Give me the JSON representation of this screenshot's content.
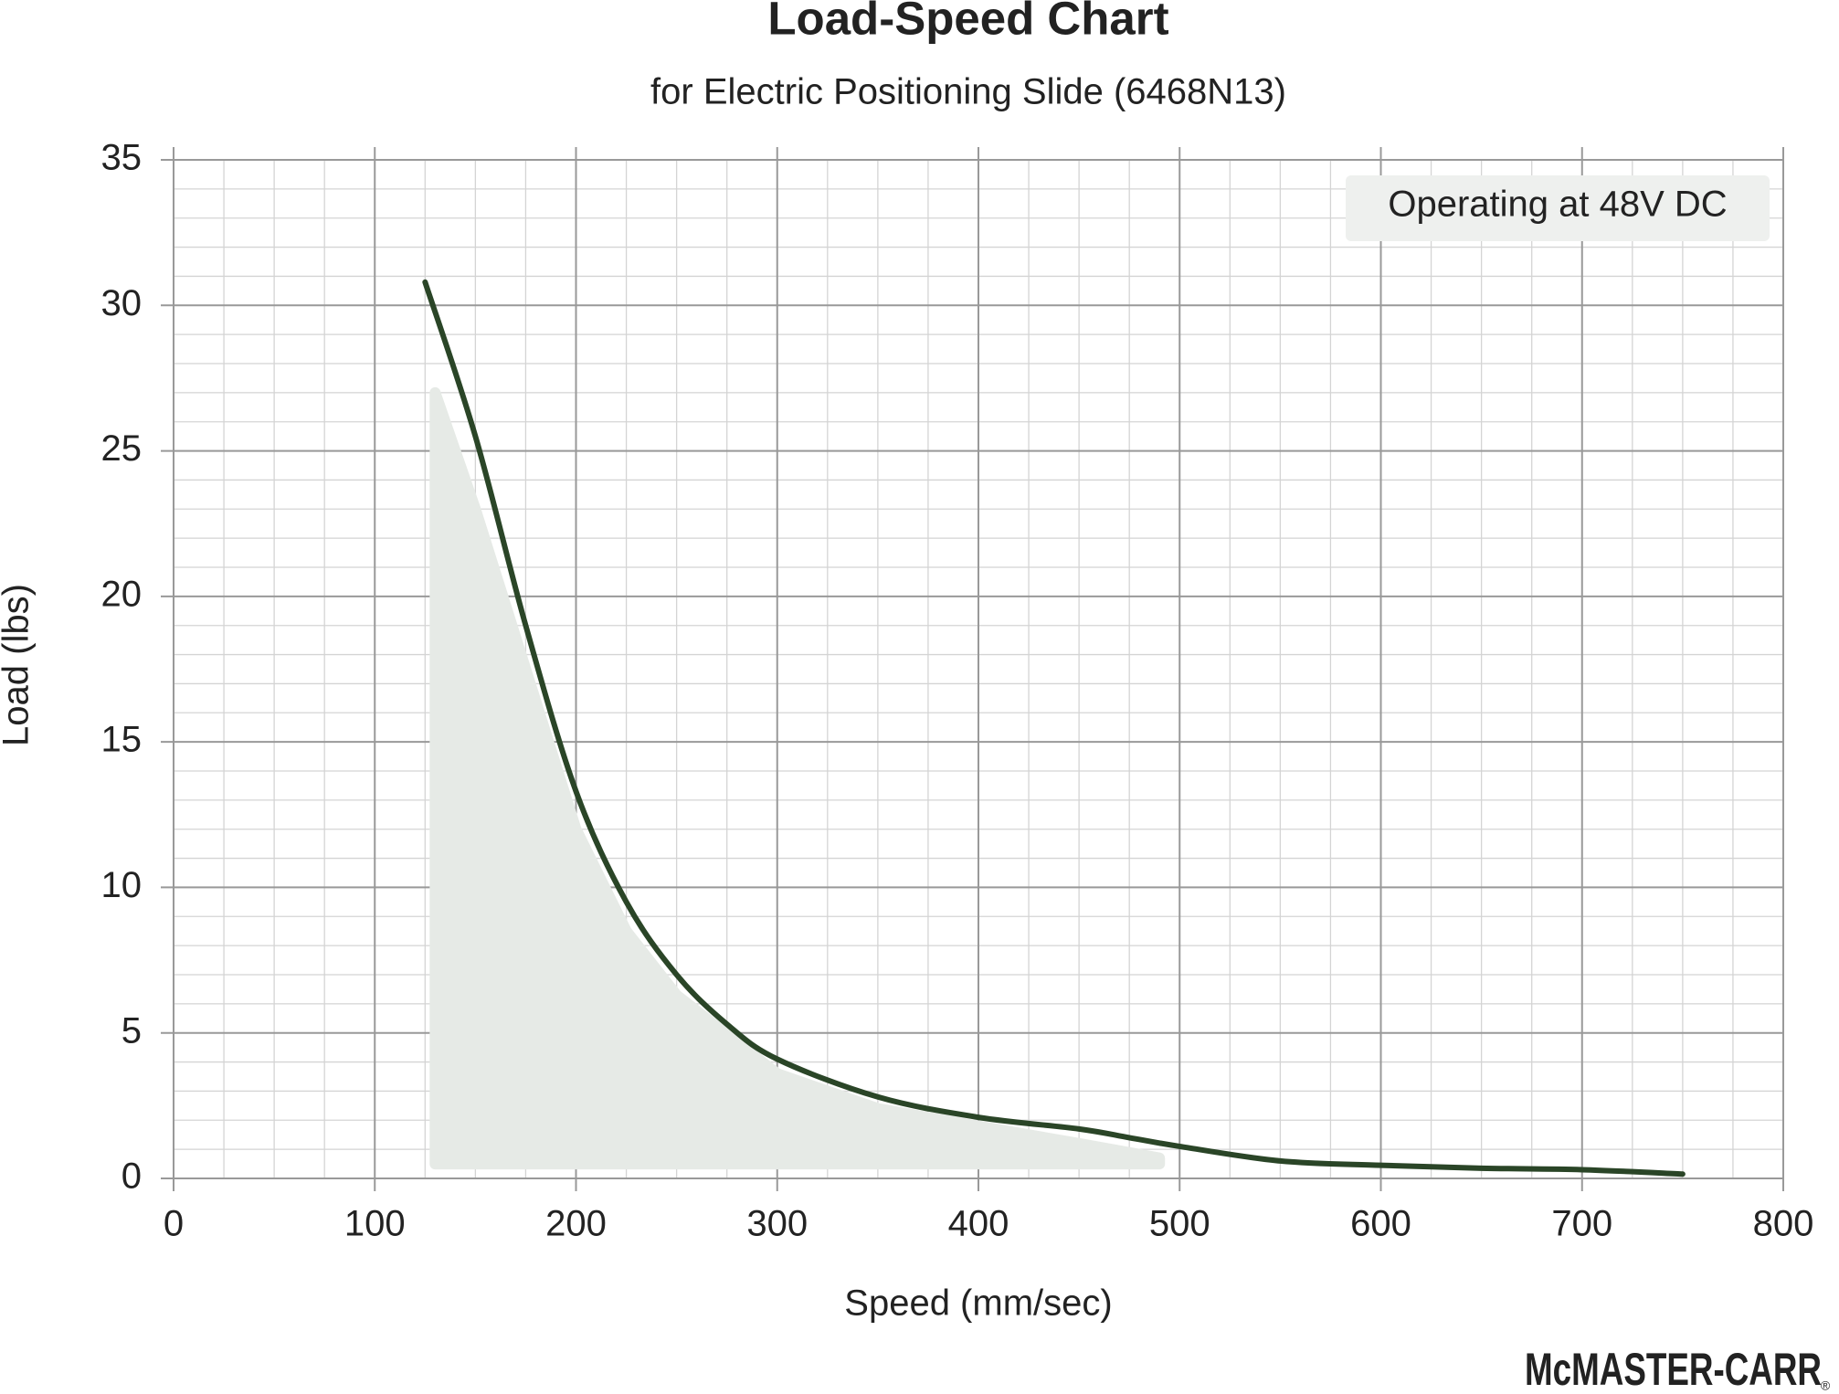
{
  "chart_data": {
    "type": "line",
    "title": "Load-Speed Chart",
    "subtitle": "for Electric Positioning Slide (6468N13)",
    "x_label": "Speed (mm/sec)",
    "y_label": "Load (lbs)",
    "annotation": "Operating at 48V DC",
    "brand": "McMASTER-CARR",
    "brand_mark": "®",
    "xlim": [
      0,
      800
    ],
    "ylim": [
      0,
      35
    ],
    "xticks": [
      0,
      100,
      200,
      300,
      400,
      500,
      600,
      700,
      800
    ],
    "yticks": [
      0,
      5,
      10,
      15,
      20,
      25,
      30,
      35
    ],
    "grid": true,
    "minor_grid": {
      "x": 25,
      "y": 1
    },
    "series": [
      {
        "color": "#2a4527",
        "x": [
          125,
          150,
          175,
          200,
          225,
          250,
          275,
          300,
          350,
          400,
          450,
          475,
          500,
          550,
          600,
          650,
          700,
          750
        ],
        "values": [
          30.8,
          25.5,
          19,
          13.3,
          9.5,
          7.0,
          5.3,
          4.1,
          2.8,
          2.1,
          1.7,
          1.4,
          1.1,
          0.6,
          0.45,
          0.35,
          0.3,
          0.15
        ]
      }
    ],
    "region": {
      "color": "#e6eae6",
      "x": [
        130,
        150,
        175,
        200,
        225,
        250,
        300,
        350,
        400,
        450,
        490
      ],
      "values": [
        27,
        23,
        17.5,
        12,
        8.5,
        6.3,
        3.6,
        2.4,
        1.8,
        1.2,
        0.7
      ],
      "base": 0.5
    }
  }
}
